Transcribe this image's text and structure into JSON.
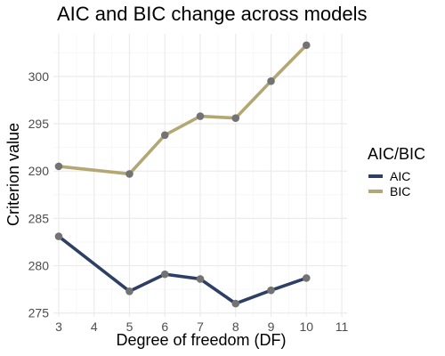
{
  "chart_data": {
    "type": "line",
    "title": "AIC and BIC change across models",
    "xlabel": "Degree of freedom (DF)",
    "ylabel": "Criterion value",
    "x_ticks": [
      3,
      4,
      5,
      6,
      7,
      8,
      9,
      10,
      11
    ],
    "y_ticks": [
      275,
      280,
      285,
      290,
      295,
      300
    ],
    "xlim": [
      2.85,
      11.15
    ],
    "ylim": [
      274.6,
      304.5
    ],
    "grid": true,
    "legend": {
      "title": "AIC/BIC",
      "position": "right"
    },
    "series": [
      {
        "name": "AIC",
        "color": "#2e3f66",
        "x": [
          3,
          5,
          6,
          7,
          8,
          9,
          10
        ],
        "y": [
          283.1,
          277.3,
          279.1,
          278.6,
          276.0,
          277.4,
          278.7
        ]
      },
      {
        "name": "BIC",
        "color": "#b3a773",
        "x": [
          3,
          5,
          6,
          7,
          8,
          9,
          10
        ],
        "y": [
          290.5,
          289.7,
          293.8,
          295.8,
          295.6,
          299.5,
          303.3
        ]
      }
    ],
    "point_color": "#737373"
  }
}
